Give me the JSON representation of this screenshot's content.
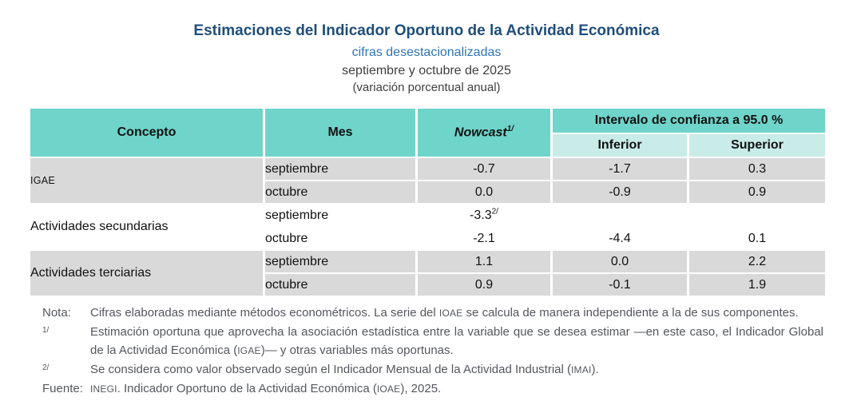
{
  "header": {
    "title": "Estimaciones del Indicador Oportuno de la Actividad Económica",
    "subtitle1": "cifras desestacionalizadas",
    "subtitle2": "septiembre y octubre de 2025",
    "subtitle3": "(variación porcentual anual)"
  },
  "colors": {
    "title_navy": "#1F4E79",
    "subtitle_blue": "#2E74B5",
    "header_teal": "#6FD4CA",
    "subheader_teal": "#C9ECE8",
    "row_gray": "#D9D9D9",
    "footnote_gray": "#55575C"
  },
  "table": {
    "headers": {
      "concepto": "Concepto",
      "mes": "Mes",
      "nowcast": "Nowcast",
      "nowcast_sup": "1/",
      "interval": "Intervalo de confianza a 95.0 %",
      "inferior": "Inferior",
      "superior": "Superior"
    },
    "groups": [
      {
        "concepto": "IGAE",
        "acronym_style": true,
        "shaded": true,
        "rows": [
          {
            "mes": "septiembre",
            "nowcast": "-0.7",
            "nowcast_sup": "",
            "inferior": "-1.7",
            "superior": "0.3"
          },
          {
            "mes": "octubre",
            "nowcast": "0.0",
            "nowcast_sup": "",
            "inferior": "-0.9",
            "superior": "0.9"
          }
        ]
      },
      {
        "concepto": "Actividades secundarias",
        "acronym_style": false,
        "shaded": false,
        "rows": [
          {
            "mes": "septiembre",
            "nowcast": "-3.3",
            "nowcast_sup": "2/",
            "inferior": "",
            "superior": ""
          },
          {
            "mes": "octubre",
            "nowcast": "-2.1",
            "nowcast_sup": "",
            "inferior": "-4.4",
            "superior": "0.1"
          }
        ]
      },
      {
        "concepto": "Actividades terciarias",
        "acronym_style": false,
        "shaded": true,
        "rows": [
          {
            "mes": "septiembre",
            "nowcast": "1.1",
            "nowcast_sup": "",
            "inferior": "0.0",
            "superior": "2.2"
          },
          {
            "mes": "octubre",
            "nowcast": "0.9",
            "nowcast_sup": "",
            "inferior": "-0.1",
            "superior": "1.9"
          }
        ]
      }
    ]
  },
  "footnotes": [
    {
      "label": "Nota:",
      "superscript_label": false,
      "segments": [
        {
          "text": "Cifras elaboradas mediante métodos econométricos. La serie del "
        },
        {
          "text": "IOAE",
          "acronym": true
        },
        {
          "text": " se calcula de manera independiente a la de sus componentes."
        }
      ]
    },
    {
      "label": "1/",
      "superscript_label": true,
      "segments": [
        {
          "text": "Estimación oportuna que aprovecha la asociación estadística entre la variable que se desea estimar —en este caso, el Indicador Global de la Actividad Económica ("
        },
        {
          "text": "IGAE",
          "acronym": true
        },
        {
          "text": ")— y otras variables más oportunas."
        }
      ]
    },
    {
      "label": "2/",
      "superscript_label": true,
      "segments": [
        {
          "text": "Se considera como valor observado según el Indicador Mensual de la Actividad Industrial ("
        },
        {
          "text": "IMAI",
          "acronym": true
        },
        {
          "text": ")."
        }
      ]
    },
    {
      "label": "Fuente:",
      "superscript_label": false,
      "segments": [
        {
          "text": "INEGI",
          "acronym": true
        },
        {
          "text": ". Indicador Oportuno de la Actividad Económica ("
        },
        {
          "text": "IOAE",
          "acronym": true
        },
        {
          "text": "), 2025."
        }
      ]
    }
  ]
}
